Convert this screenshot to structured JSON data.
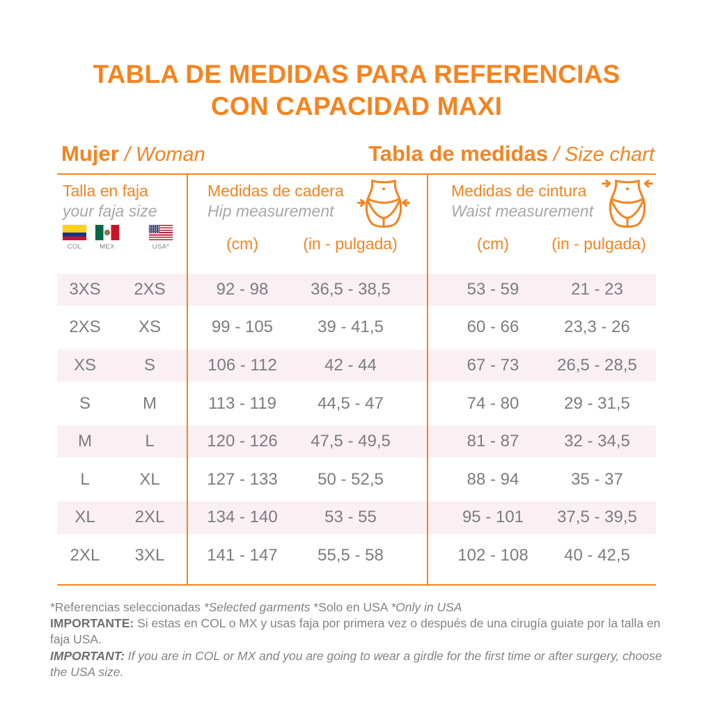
{
  "title": {
    "line1": "TABLA DE MEDIDAS PARA REFERENCIAS",
    "line2": "CON CAPACIDAD MAXI"
  },
  "headings": {
    "gender_bold": "Mujer",
    "gender_italic": "/ Woman",
    "chart_bold": "Tabla de medidas",
    "chart_italic": "/ Size chart"
  },
  "table_header": {
    "size": {
      "title": "Talla en faja",
      "subtitle": "your faja size",
      "flags": [
        {
          "icon": "colombia-flag",
          "label": "COL"
        },
        {
          "icon": "mexico-flag",
          "label": "MEX"
        },
        {
          "icon": "usa-flag",
          "label": "USA*"
        }
      ]
    },
    "hip": {
      "title": "Medidas de cadera",
      "subtitle": "Hip measurement",
      "icon": "hip-measurement-icon",
      "unit_cm": "(cm)",
      "unit_in": "(in - pulgada)"
    },
    "waist": {
      "title": "Medidas de cintura",
      "subtitle": "Waist measurement",
      "icon": "waist-measurement-icon",
      "unit_cm": "(cm)",
      "unit_in": "(in - pulgada)"
    }
  },
  "chart_data": {
    "type": "table",
    "columns": [
      "Talla COL/MEX",
      "Talla USA",
      "Cadera (cm)",
      "Cadera (in - pulgada)",
      "Cintura (cm)",
      "Cintura (in - pulgada)"
    ],
    "rows": [
      [
        "3XS",
        "2XS",
        "92 - 98",
        "36,5 - 38,5",
        "53 - 59",
        "21 - 23"
      ],
      [
        "2XS",
        "XS",
        "99 - 105",
        "39 - 41,5",
        "60 - 66",
        "23,3 - 26"
      ],
      [
        "XS",
        "S",
        "106 - 112",
        "42 - 44",
        "67 - 73",
        "26,5 - 28,5"
      ],
      [
        "S",
        "M",
        "113 - 119",
        "44,5 - 47",
        "74 - 80",
        "29 - 31,5"
      ],
      [
        "M",
        "L",
        "120 - 126",
        "47,5 - 49,5",
        "81 - 87",
        "32 - 34,5"
      ],
      [
        "L",
        "XL",
        "127 - 133",
        "50 - 52,5",
        "88 - 94",
        "35 - 37"
      ],
      [
        "XL",
        "2XL",
        "134 - 140",
        "53 - 55",
        "95 - 101",
        "37,5 - 39,5"
      ],
      [
        "2XL",
        "3XL",
        "141 - 147",
        "55,5 - 58",
        "102 - 108",
        "40 - 42,5"
      ]
    ]
  },
  "footer": {
    "note_plain1": "*Referencias seleccionadas ",
    "note_italic1": "*Selected garments ",
    "note_plain2": "*Solo en USA ",
    "note_italic2": "*Only in USA",
    "important_es_label": "IMPORTANTE:",
    "important_es_text": " Si estas en COL o MX y usas faja por primera vez o después de una cirugía guiate por la talla en faja USA.",
    "important_en_label": "IMPORTANT:",
    "important_en_text": " If you are in COL or MX and you are going to wear a girdle for the first time or after surgery, choose the USA size."
  },
  "colors": {
    "accent": "#F5831F",
    "stripe_pink": "#FAF0F3",
    "cell_text": "#7A7C7F",
    "subtitle_gray": "#A5A7AA",
    "footer_gray": "#808285"
  }
}
